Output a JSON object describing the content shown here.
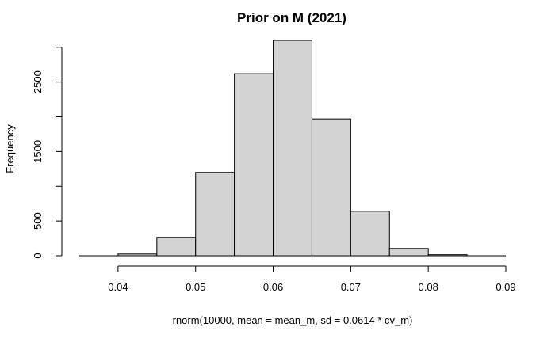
{
  "chart_data": {
    "type": "bar",
    "title": "Prior on M (2021)",
    "xlabel": "rnorm(10000, mean = mean_m, sd = 0.0614 * cv_m)",
    "ylabel": "Frequency",
    "bins": [
      {
        "start": 0.035,
        "end": 0.04,
        "count": 0
      },
      {
        "start": 0.04,
        "end": 0.045,
        "count": 25
      },
      {
        "start": 0.045,
        "end": 0.05,
        "count": 265
      },
      {
        "start": 0.05,
        "end": 0.055,
        "count": 1200
      },
      {
        "start": 0.055,
        "end": 0.06,
        "count": 2620
      },
      {
        "start": 0.06,
        "end": 0.065,
        "count": 3100
      },
      {
        "start": 0.065,
        "end": 0.07,
        "count": 1970
      },
      {
        "start": 0.07,
        "end": 0.075,
        "count": 640
      },
      {
        "start": 0.075,
        "end": 0.08,
        "count": 105
      },
      {
        "start": 0.08,
        "end": 0.085,
        "count": 15
      },
      {
        "start": 0.085,
        "end": 0.09,
        "count": 0
      }
    ],
    "xlim": [
      0.035,
      0.09
    ],
    "ylim": [
      0,
      3100
    ],
    "x_ticks": [
      0.04,
      0.05,
      0.06,
      0.07,
      0.08,
      0.09
    ],
    "x_tick_labels": [
      "0.04",
      "0.05",
      "0.06",
      "0.07",
      "0.08",
      "0.09"
    ],
    "y_ticks": [
      0,
      500,
      1500,
      2500
    ],
    "y_tick_labels": [
      "0",
      "500",
      "1500",
      "2500"
    ],
    "y_minor_ticks": [
      1000,
      2000,
      3000
    ],
    "bar_fill": "#d3d3d3",
    "bar_stroke": "#000000",
    "grid": false,
    "legend": "none"
  }
}
